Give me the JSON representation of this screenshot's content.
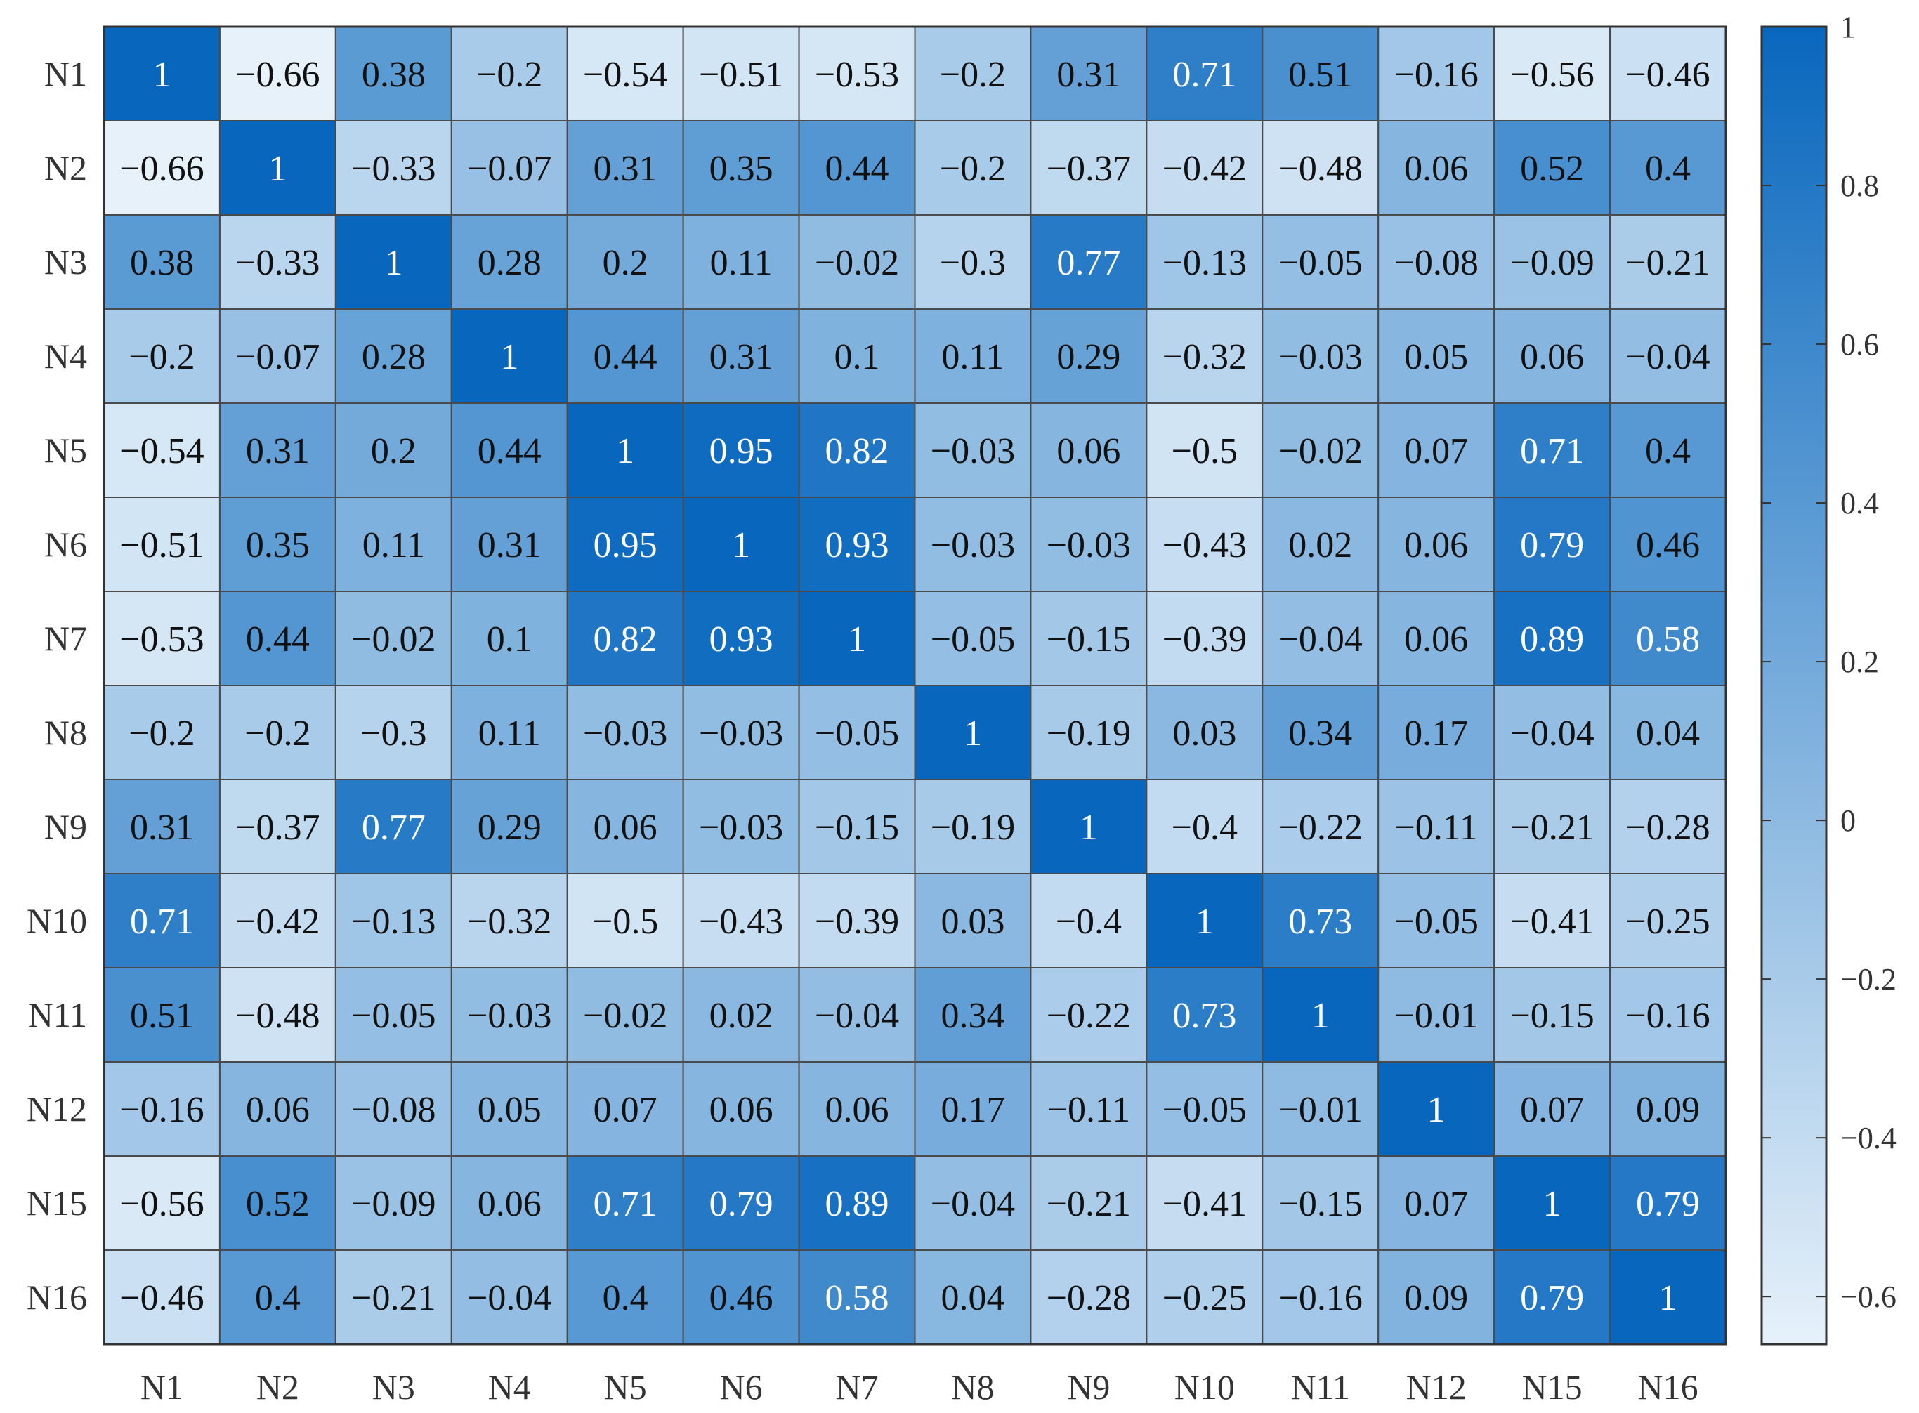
{
  "chart_data": {
    "type": "heatmap",
    "title": "",
    "xlabel": "",
    "ylabel": "",
    "row_labels": [
      "N1",
      "N2",
      "N3",
      "N4",
      "N5",
      "N6",
      "N7",
      "N8",
      "N9",
      "N10",
      "N11",
      "N12",
      "N15",
      "N16"
    ],
    "col_labels": [
      "N1",
      "N2",
      "N3",
      "N4",
      "N5",
      "N6",
      "N7",
      "N8",
      "N9",
      "N10",
      "N11",
      "N12",
      "N15",
      "N16"
    ],
    "values": [
      [
        1,
        -0.66,
        0.38,
        -0.2,
        -0.54,
        -0.51,
        -0.53,
        -0.2,
        0.31,
        0.71,
        0.51,
        -0.16,
        -0.56,
        -0.46
      ],
      [
        -0.66,
        1,
        -0.33,
        -0.07,
        0.31,
        0.35,
        0.44,
        -0.2,
        -0.37,
        -0.42,
        -0.48,
        0.06,
        0.52,
        0.4
      ],
      [
        0.38,
        -0.33,
        1,
        0.28,
        0.2,
        0.11,
        -0.02,
        -0.3,
        0.77,
        -0.13,
        -0.05,
        -0.08,
        -0.09,
        -0.21
      ],
      [
        -0.2,
        -0.07,
        0.28,
        1,
        0.44,
        0.31,
        0.1,
        0.11,
        0.29,
        -0.32,
        -0.03,
        0.05,
        0.06,
        -0.04
      ],
      [
        -0.54,
        0.31,
        0.2,
        0.44,
        1,
        0.95,
        0.82,
        -0.03,
        0.06,
        -0.5,
        -0.02,
        0.07,
        0.71,
        0.4
      ],
      [
        -0.51,
        0.35,
        0.11,
        0.31,
        0.95,
        1,
        0.93,
        -0.03,
        -0.03,
        -0.43,
        0.02,
        0.06,
        0.79,
        0.46
      ],
      [
        -0.53,
        0.44,
        -0.02,
        0.1,
        0.82,
        0.93,
        1,
        -0.05,
        -0.15,
        -0.39,
        -0.04,
        0.06,
        0.89,
        0.58
      ],
      [
        -0.2,
        -0.2,
        -0.3,
        0.11,
        -0.03,
        -0.03,
        -0.05,
        1,
        -0.19,
        0.03,
        0.34,
        0.17,
        -0.04,
        0.04
      ],
      [
        0.31,
        -0.37,
        0.77,
        0.29,
        0.06,
        -0.03,
        -0.15,
        -0.19,
        1,
        -0.4,
        -0.22,
        -0.11,
        -0.21,
        -0.28
      ],
      [
        0.71,
        -0.42,
        -0.13,
        -0.32,
        -0.5,
        -0.43,
        -0.39,
        0.03,
        -0.4,
        1,
        0.73,
        -0.05,
        -0.41,
        -0.25
      ],
      [
        0.51,
        -0.48,
        -0.05,
        -0.03,
        -0.02,
        0.02,
        -0.04,
        0.34,
        -0.22,
        0.73,
        1,
        -0.01,
        -0.15,
        -0.16
      ],
      [
        -0.16,
        0.06,
        -0.08,
        0.05,
        0.07,
        0.06,
        0.06,
        0.17,
        -0.11,
        -0.05,
        -0.01,
        1,
        0.07,
        0.09
      ],
      [
        -0.56,
        0.52,
        -0.09,
        0.06,
        0.71,
        0.79,
        0.89,
        -0.04,
        -0.21,
        -0.41,
        -0.15,
        0.07,
        1,
        0.79
      ],
      [
        -0.46,
        0.4,
        -0.21,
        -0.04,
        0.4,
        0.46,
        0.58,
        0.04,
        -0.28,
        -0.25,
        -0.16,
        0.09,
        0.79,
        1
      ]
    ],
    "colorbar": {
      "range": [
        -0.66,
        1
      ],
      "ticks": [
        1,
        0.8,
        0.6,
        0.4,
        0.2,
        0,
        -0.2,
        -0.4,
        -0.6
      ],
      "tick_labels": [
        "1",
        "0.8",
        "0.6",
        "0.4",
        "0.2",
        "0",
        "−0.2",
        "−0.4",
        "−0.6"
      ]
    },
    "colors": {
      "low": "#e6f1fa",
      "high": "#0867bd",
      "grid": "#4a4a4a"
    },
    "grid": true
  }
}
